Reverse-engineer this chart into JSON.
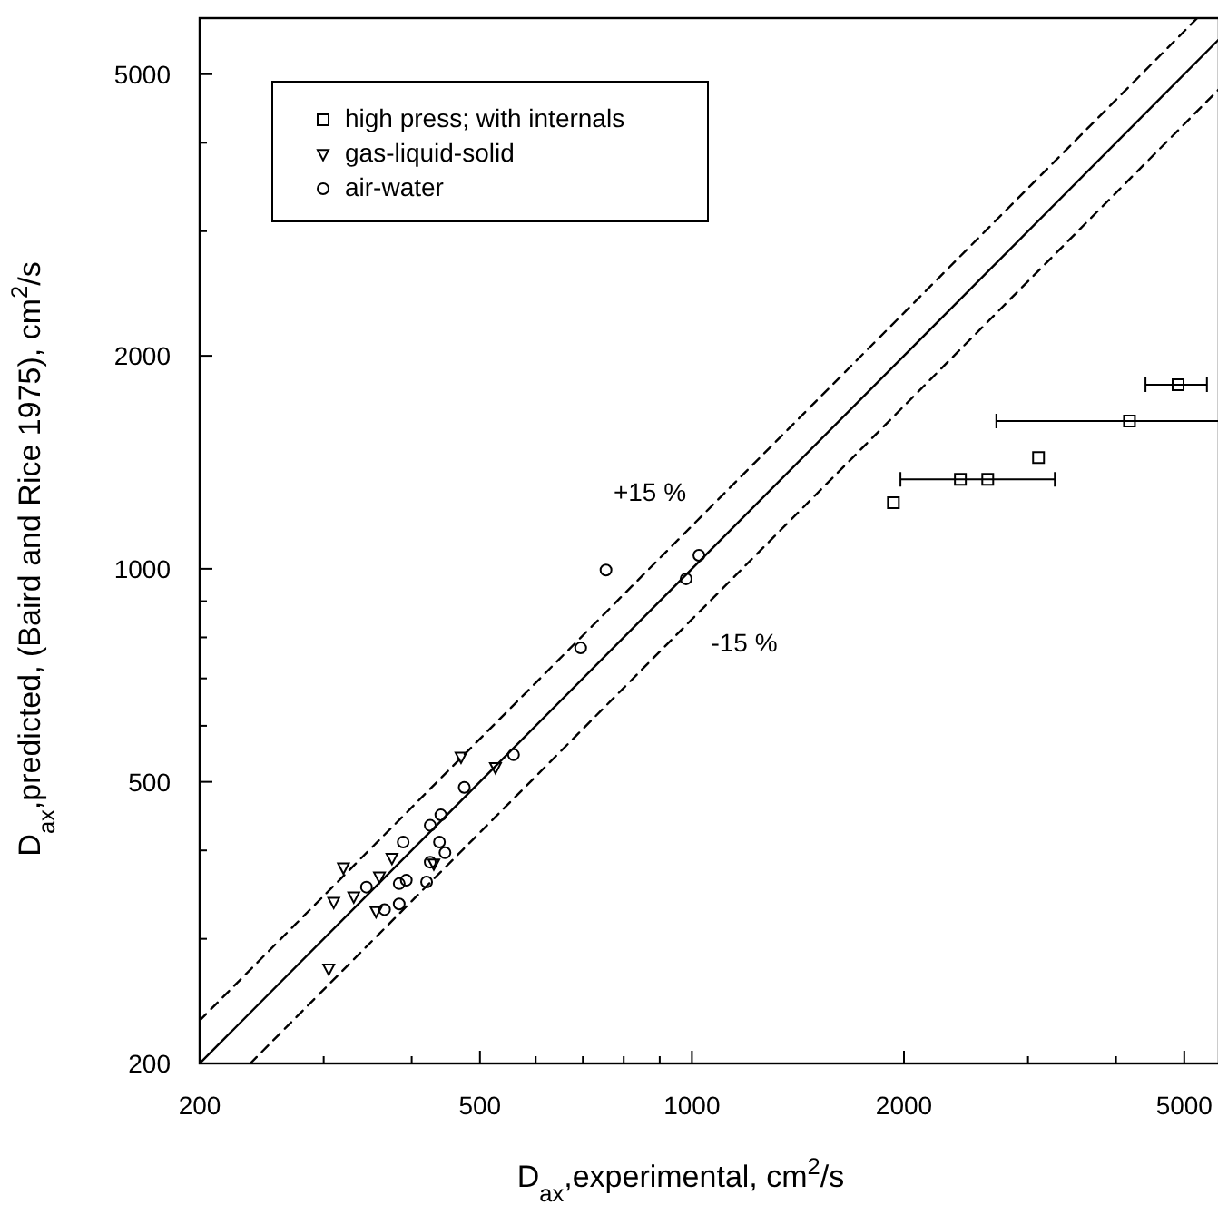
{
  "chart_data": {
    "type": "scatter",
    "xlabel": "D$_{ax}$,experimental, cm$^{2}$/s",
    "ylabel": "D$_{ax}$,predicted, (Baird and Rice 1975), cm$^{2}$/s",
    "log": "xy",
    "legend": "top left",
    "xlim": [
      200,
      5600
    ],
    "ylim": [
      200,
      6000
    ],
    "xticks": [
      200,
      {
        "value": 300,
        "label": null
      },
      {
        "value": 400,
        "label": null
      },
      500,
      {
        "value": 600,
        "label": null
      },
      {
        "value": 700,
        "label": null
      },
      {
        "value": 800,
        "label": null
      },
      {
        "value": 900,
        "label": null
      },
      1000,
      2000,
      {
        "value": 3000,
        "label": null
      },
      {
        "value": 4000,
        "label": null
      },
      5000
    ],
    "yticks": [
      200,
      {
        "value": 300,
        "label": null
      },
      {
        "value": 400,
        "label": null
      },
      500,
      {
        "value": 600,
        "label": null
      },
      {
        "value": 700,
        "label": null
      },
      {
        "value": 800,
        "label": null
      },
      {
        "value": 900,
        "label": null
      },
      1000,
      2000,
      {
        "value": 3000,
        "label": null
      },
      {
        "value": 4000,
        "label": null
      },
      5000
    ],
    "annotations": [
      "+15 %",
      "-15 %"
    ],
    "series": [
      {
        "type": "line",
        "color": "#000000",
        "line_style": "solid",
        "x": [
          200,
          5600
        ],
        "values": [
          200,
          5600
        ]
      },
      {
        "type": "line",
        "color": "#000000",
        "line_style": "dashed",
        "x": [
          200,
          5217
        ],
        "values": [
          230,
          6000
        ]
      },
      {
        "type": "line",
        "color": "#000000",
        "line_style": "dashed",
        "x": [
          236,
          5600
        ],
        "values": [
          200,
          4760
        ]
      },
      {
        "name": "high press; with internals",
        "color": "#000000",
        "marker": "square",
        "x": [
          4900,
          4180,
          3105,
          2405,
          2630,
          1932
        ],
        "values": [
          1820,
          1618,
          1436,
          1338,
          1338,
          1240
        ],
        "xerrors": [
          [
            4405,
            5385
          ],
          [
            2705,
            5600
          ],
          null,
          [
            1977,
            3275
          ],
          null,
          null
        ]
      },
      {
        "name": "gas-liquid-solid",
        "color": "#000000",
        "marker": "triangle",
        "x": [
          470,
          526,
          320,
          310,
          331,
          375,
          360,
          356,
          305,
          430
        ],
        "values": [
          542,
          524,
          378,
          338,
          344,
          390,
          367,
          328,
          272,
          383
        ]
      },
      {
        "name": "air-water",
        "color": "#000000",
        "marker": "circle",
        "x": [
          558,
          475,
          425,
          440,
          389,
          438,
          446,
          425,
          345,
          384,
          393,
          420,
          384,
          366,
          755,
          695,
          1023,
          981
        ],
        "values": [
          546,
          491,
          434,
          449,
          411,
          411,
          397,
          385,
          355,
          359,
          363,
          361,
          336,
          330,
          996,
          773,
          1045,
          968
        ]
      }
    ]
  }
}
